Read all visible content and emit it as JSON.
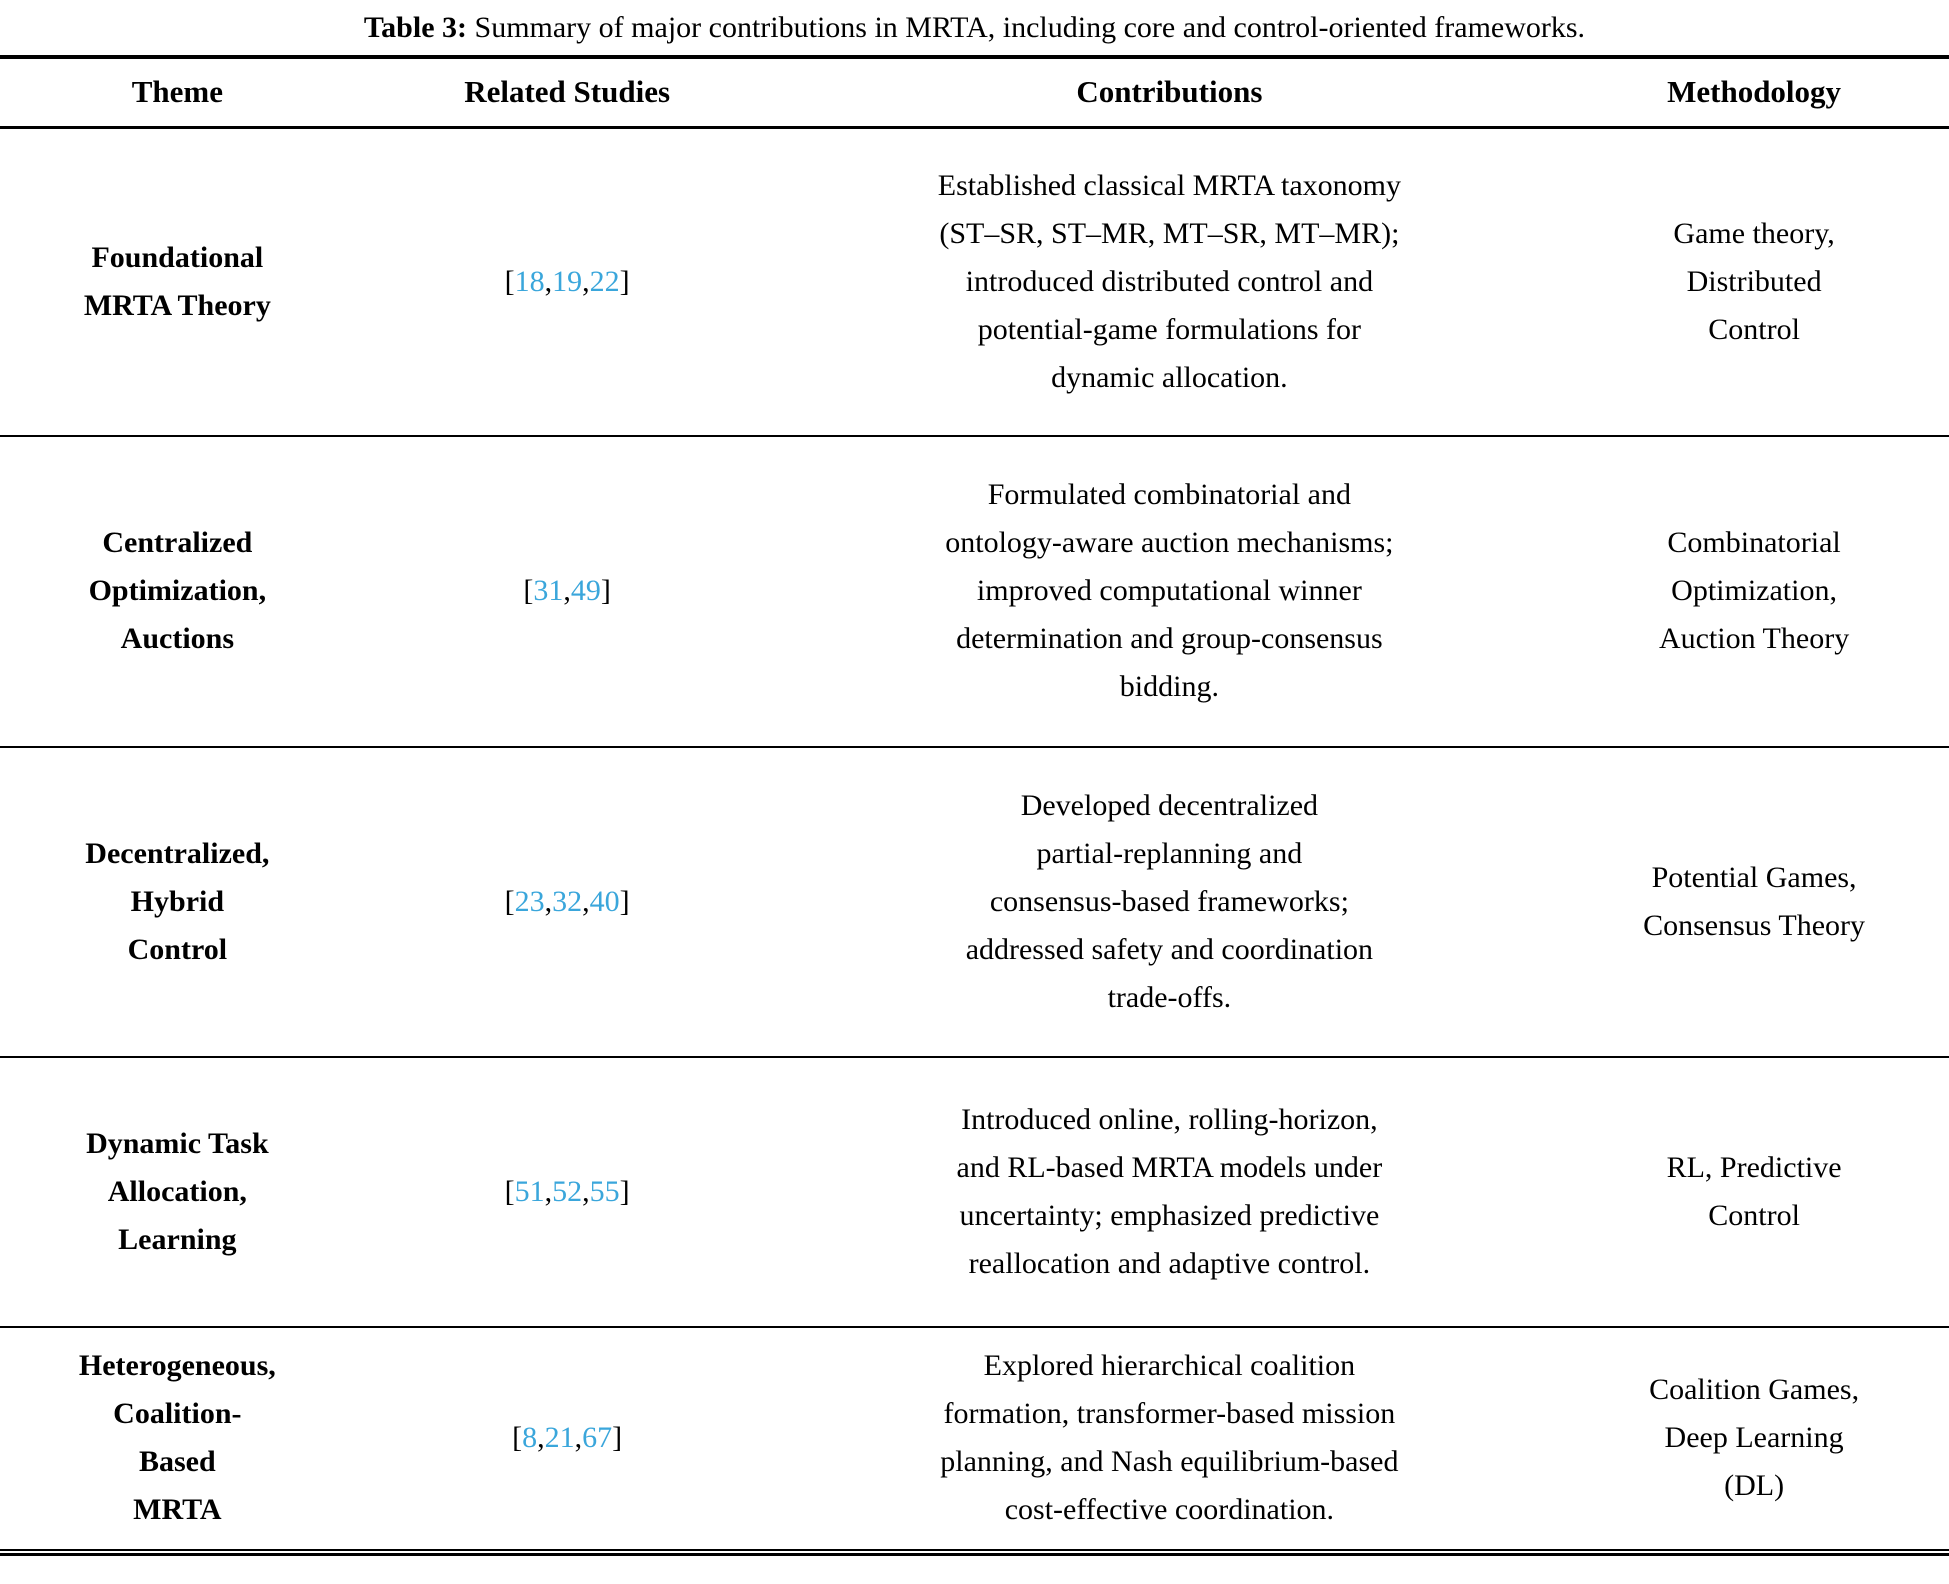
{
  "caption": {
    "label": "Table 3:",
    "text": "Summary of major contributions in MRTA, including core and control-oriented frameworks."
  },
  "columns": [
    "Theme",
    "Related Studies",
    "Contributions",
    "Methodology"
  ],
  "link_color": "#3aa6db",
  "rows": [
    {
      "theme_lines": [
        "Foundational",
        "MRTA Theory"
      ],
      "citations": [
        "18",
        "19",
        "22"
      ],
      "contribution_lines": [
        "Established classical MRTA taxonomy",
        "(ST–SR, ST–MR, MT–SR, MT–MR);",
        "introduced distributed control and",
        "potential-game formulations for",
        "dynamic allocation."
      ],
      "methodology_lines": [
        "Game theory,",
        "Distributed",
        "Control"
      ]
    },
    {
      "theme_lines": [
        "Centralized",
        "Optimization,",
        "Auctions"
      ],
      "citations": [
        "31",
        "49"
      ],
      "contribution_lines": [
        "Formulated combinatorial and",
        "ontology-aware auction mechanisms;",
        "improved computational winner",
        "determination and group-consensus",
        "bidding."
      ],
      "methodology_lines": [
        "Combinatorial",
        "Optimization,",
        "Auction Theory"
      ]
    },
    {
      "theme_lines": [
        "Decentralized,",
        "Hybrid",
        "Control"
      ],
      "citations": [
        "23",
        "32",
        "40"
      ],
      "contribution_lines": [
        "Developed decentralized",
        "partial-replanning and",
        "consensus-based frameworks;",
        "addressed safety and coordination",
        "trade-offs."
      ],
      "methodology_lines": [
        "Potential Games,",
        "Consensus Theory"
      ]
    },
    {
      "theme_lines": [
        "Dynamic Task",
        "Allocation,",
        "Learning"
      ],
      "citations": [
        "51",
        "52",
        "55"
      ],
      "contribution_lines": [
        "Introduced online, rolling-horizon,",
        "and RL-based MRTA models under",
        "uncertainty; emphasized predictive",
        "reallocation and adaptive control."
      ],
      "methodology_lines": [
        "RL, Predictive",
        "Control"
      ]
    },
    {
      "theme_lines": [
        "Heterogeneous,",
        "Coalition-",
        "Based",
        "MRTA"
      ],
      "citations": [
        "8",
        "21",
        "67"
      ],
      "contribution_lines": [
        "Explored hierarchical coalition",
        "formation, transformer-based mission",
        "planning, and Nash equilibrium-based",
        "cost-effective coordination."
      ],
      "methodology_lines": [
        "Coalition Games,",
        "Deep Learning",
        "(DL)"
      ]
    }
  ]
}
